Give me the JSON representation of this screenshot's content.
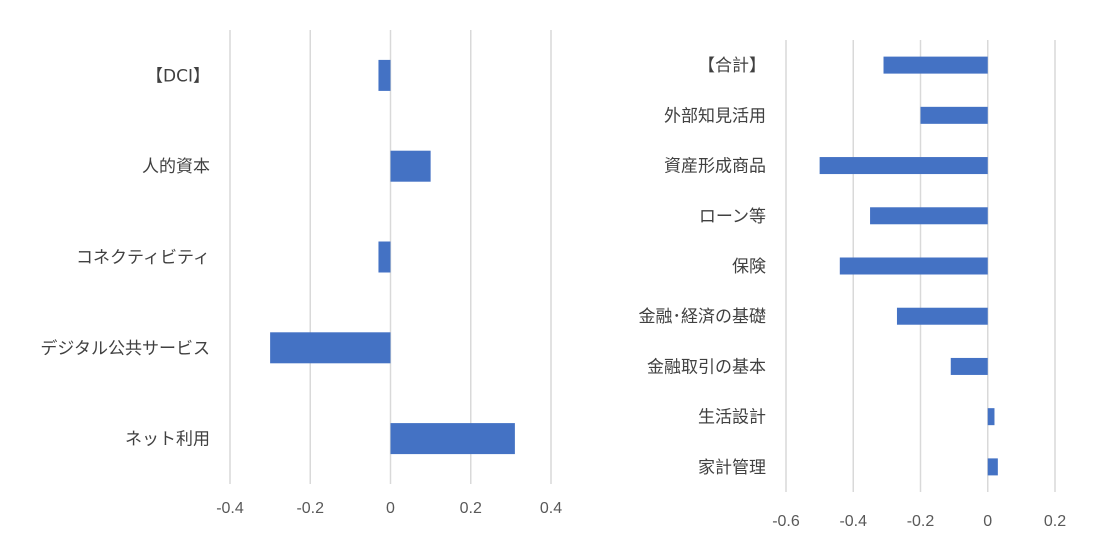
{
  "chart_data": [
    {
      "type": "bar",
      "orientation": "horizontal",
      "categories": [
        "【DCI】",
        "人的資本",
        "コネクティビティ",
        "デジタル公共サービス",
        "ネット利用"
      ],
      "values": [
        -0.03,
        0.1,
        -0.03,
        -0.3,
        0.31
      ],
      "xlim": [
        -0.4,
        0.4
      ],
      "xticks": [
        "-0.4",
        "-0.2",
        "0",
        "0.2",
        "0.4"
      ],
      "grid": true,
      "bar_color": "#4472c4"
    },
    {
      "type": "bar",
      "orientation": "horizontal",
      "categories": [
        "【合計】",
        "外部知見活用",
        "資産形成商品",
        "ローン等",
        "保険",
        "金融･経済の基礎",
        "金融取引の基本",
        "生活設計",
        "家計管理"
      ],
      "values": [
        -0.31,
        -0.2,
        -0.5,
        -0.35,
        -0.44,
        -0.27,
        -0.11,
        0.02,
        0.03
      ],
      "xlim": [
        -0.6,
        0.2
      ],
      "xticks": [
        "-0.6",
        "-0.4",
        "-0.2",
        "0",
        "0.2"
      ],
      "grid": true,
      "bar_color": "#4472c4"
    }
  ]
}
